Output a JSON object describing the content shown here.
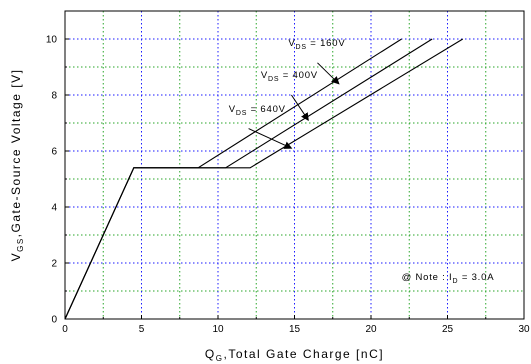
{
  "chart_data": {
    "type": "line",
    "xlabel": {
      "main": "Q",
      "sub": "G",
      "rest": ",Total Gate Charge [nC]"
    },
    "ylabel": {
      "main": "V",
      "sub": "GS",
      "rest": ",Gate-Source Voltage [V]"
    },
    "xlim": [
      0,
      30
    ],
    "ylim": [
      0,
      11
    ],
    "xticks": [
      0,
      5,
      10,
      15,
      20,
      25,
      30
    ],
    "yticks": [
      0,
      2,
      4,
      6,
      8,
      10
    ],
    "grid_minor_x": [
      2.5,
      7.5,
      12.5,
      17.5,
      22.5,
      27.5
    ],
    "grid_minor_y": [
      1,
      3,
      5,
      7,
      9
    ],
    "grid": true,
    "colors": {
      "line": "#000000",
      "grid_major": "#1a1aff",
      "grid_minor": "#2aa62a"
    },
    "series": [
      {
        "name": "V_DS = 160V",
        "points": [
          [
            0,
            0
          ],
          [
            4.5,
            5.4
          ],
          [
            8.7,
            5.4
          ],
          [
            22,
            10
          ]
        ]
      },
      {
        "name": "V_DS = 400V",
        "points": [
          [
            0,
            0
          ],
          [
            4.5,
            5.4
          ],
          [
            10.5,
            5.4
          ],
          [
            24,
            10
          ]
        ]
      },
      {
        "name": "V_DS = 640V",
        "points": [
          [
            0,
            0
          ],
          [
            4.5,
            5.4
          ],
          [
            12.1,
            5.4
          ],
          [
            26,
            10
          ]
        ]
      }
    ],
    "annotations": [
      {
        "main": "V",
        "sub": "DS",
        "rest": " = 160V",
        "tx": 14.6,
        "ty": 9.75,
        "ax": 16.5,
        "ay": 9.15,
        "hx": 17.9,
        "hy": 8.4
      },
      {
        "main": "V",
        "sub": "DS",
        "rest": " = 400V",
        "tx": 12.8,
        "ty": 8.6,
        "ax": 14.8,
        "ay": 8.0,
        "hx": 15.9,
        "hy": 7.1
      },
      {
        "main": "V",
        "sub": "DS",
        "rest": " = 640V",
        "tx": 10.7,
        "ty": 7.4,
        "ax": 12.0,
        "ay": 6.8,
        "hx": 14.8,
        "hy": 6.1
      }
    ],
    "note": {
      "prefix": "@ Note : I",
      "sub": "D",
      "rest": " = 3.0A",
      "tx": 22.0,
      "ty": 1.4
    }
  }
}
